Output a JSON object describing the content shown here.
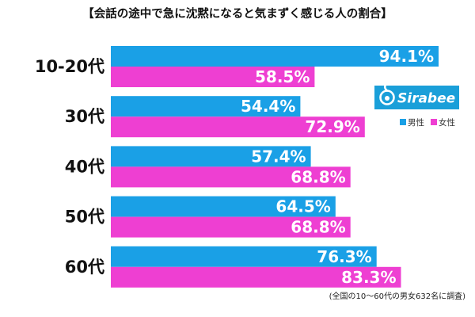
{
  "chart_data": {
    "type": "bar",
    "orientation": "horizontal",
    "title": "【会話の途中で急に沈黙になると気まずく感じる人の割合】",
    "categories": [
      "10-20代",
      "30代",
      "40代",
      "50代",
      "60代"
    ],
    "series": [
      {
        "name": "男性",
        "color": "#1aa0e6",
        "values": [
          94.1,
          54.4,
          57.4,
          64.5,
          76.3
        ]
      },
      {
        "name": "女性",
        "color": "#ee3fd2",
        "values": [
          58.5,
          72.9,
          68.8,
          68.8,
          83.3
        ]
      }
    ],
    "value_suffix": "%",
    "xlim": [
      0,
      100
    ],
    "grid": false,
    "legend_position": "right",
    "footnote": "(全国の10～60代の男女632名に調査)"
  },
  "logo": {
    "text": "Sirabee",
    "color": "#1a9fd9",
    "icon": "sirabee-logo-icon"
  }
}
